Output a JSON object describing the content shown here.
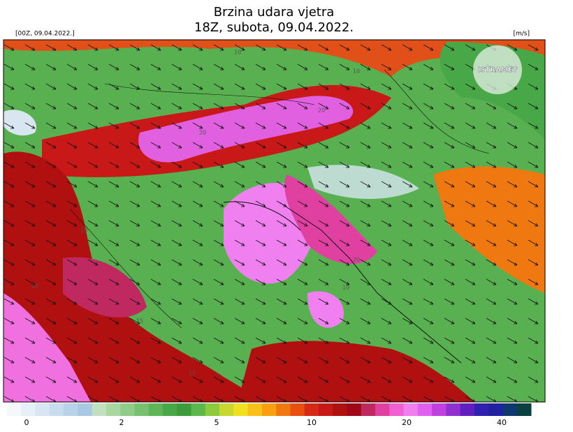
{
  "header": {
    "title": "Brzina udara vjetra",
    "subtitle": "18Z, subota, 09.04.2022.",
    "run": "[00Z, 09.04.2022.]",
    "unit": "[m/s]"
  },
  "logo": {
    "label": "ISTRAMET"
  },
  "map": {
    "contour_labels": [
      "10",
      "20",
      "10",
      "10",
      "15",
      "20",
      "10",
      "15",
      "10",
      "20"
    ]
  },
  "colorbar": {
    "colors": [
      "#f4f8fb",
      "#e6eef7",
      "#d8e6f2",
      "#c8dcef",
      "#b8d2ea",
      "#a8c8e4",
      "#c0e0c0",
      "#a8d8a0",
      "#90cc88",
      "#78c070",
      "#60b458",
      "#48a848",
      "#3c9c3c",
      "#5cb84c",
      "#8ccc3c",
      "#c8d830",
      "#f0e020",
      "#f8c018",
      "#f8a010",
      "#f07810",
      "#e85010",
      "#d82818",
      "#c81818",
      "#b01010",
      "#a00818",
      "#c02860",
      "#e040a0",
      "#f060d0",
      "#f080f0",
      "#e060f0",
      "#c040e0",
      "#9030d0",
      "#6020c0",
      "#3020b0",
      "#2020a0",
      "#103870",
      "#0a4040"
    ],
    "ticks": [
      0,
      2,
      5,
      10,
      20,
      40
    ]
  }
}
